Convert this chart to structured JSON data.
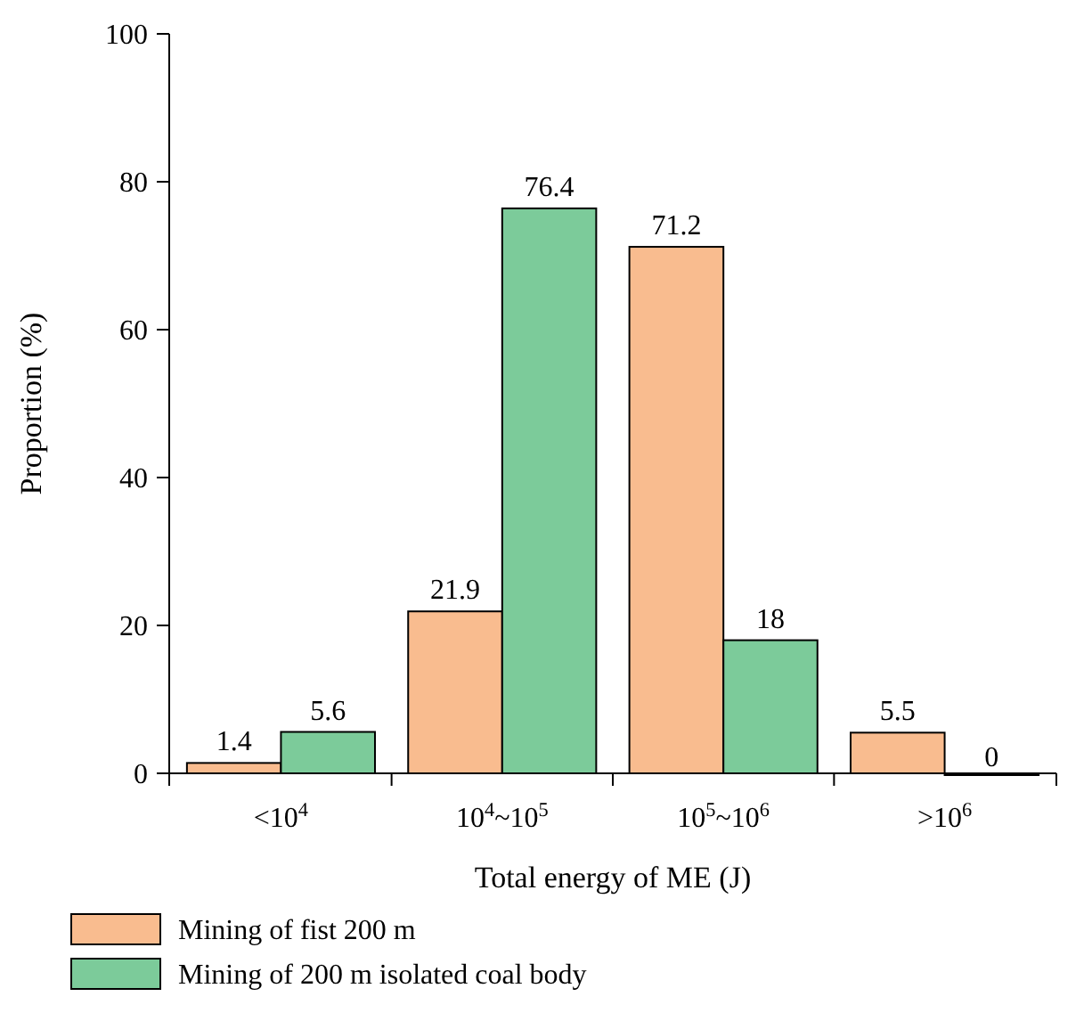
{
  "chart_data": {
    "type": "bar",
    "xlabel": "Total energy of ME (J)",
    "ylabel": "Proportion (%)",
    "categories": [
      "<10$^{4}$",
      "10$^{4}$~10$^{5}$",
      "10$^{5}$~10$^{6}$",
      ">10$^{6}$"
    ],
    "series": [
      {
        "name": "Mining of fist 200 m",
        "color": "#f9bc8f",
        "values": [
          1.4,
          21.9,
          71.2,
          5.5
        ]
      },
      {
        "name": "Mining of 200 m isolated coal body",
        "color": "#7ccb9a",
        "values": [
          5.6,
          76.4,
          18,
          0
        ]
      }
    ],
    "ylim": [
      0,
      100
    ],
    "yticks": [
      0,
      20,
      40,
      60,
      80,
      100
    ],
    "data_labels": true,
    "legend": "bottom",
    "grid": false
  }
}
